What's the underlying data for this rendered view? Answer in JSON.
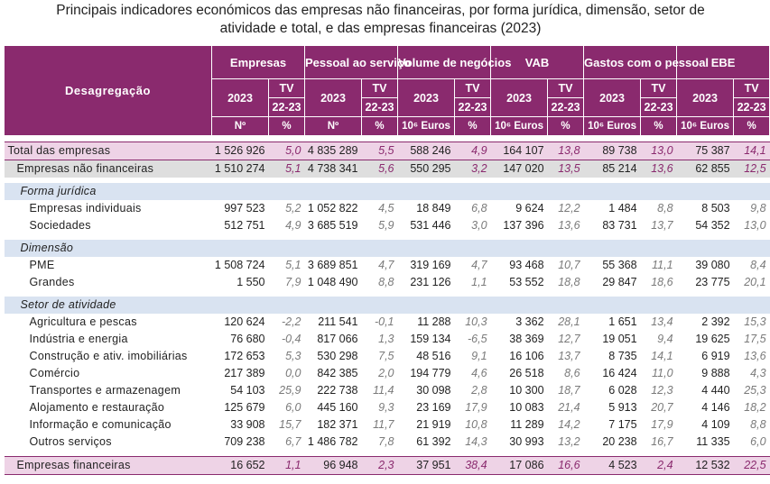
{
  "title_line1": "Principais indicadores económicos das empresas não financeiras, por forma jurídica, dimensão, setor de",
  "title_line2": "atividade e total, e das empresas financeiras (2023)",
  "header": {
    "corner": "Desagregação",
    "groups": [
      "Empresas",
      "Pessoal ao serviço",
      "Volume de negócios",
      "VAB",
      "Gastos com o pessoal",
      "EBE"
    ],
    "year": "2023",
    "tv": "TV",
    "period": "22-23",
    "units": [
      "Nº",
      "%",
      "Nº",
      "%",
      "10⁶ Euros",
      "%",
      "10⁶ Euros",
      "%",
      "10⁶ Euros",
      "%",
      "10⁶ Euros",
      "%"
    ]
  },
  "total": {
    "label": "Total das empresas",
    "values": [
      "1 526 926",
      "5,0",
      "4 835 289",
      "5,5",
      "588 246",
      "4,9",
      "164 107",
      "13,8",
      "89 738",
      "13,0",
      "75 387",
      "14,1"
    ]
  },
  "enf": {
    "label": "Empresas não financeiras",
    "values": [
      "1 510 274",
      "5,1",
      "4 738 341",
      "5,6",
      "550 295",
      "3,2",
      "147 020",
      "13,5",
      "85 214",
      "13,6",
      "62 855",
      "12,5"
    ]
  },
  "sections": {
    "forma": "Forma jurídica",
    "dimensao": "Dimensão",
    "setor": "Setor de atividade"
  },
  "forma_rows": [
    {
      "label": "Empresas individuais",
      "values": [
        "997 523",
        "5,2",
        "1 052 822",
        "4,5",
        "18 849",
        "6,8",
        "9 624",
        "12,2",
        "1 484",
        "8,8",
        "8 503",
        "9,8"
      ]
    },
    {
      "label": "Sociedades",
      "values": [
        "512 751",
        "4,9",
        "3 685 519",
        "5,9",
        "531 446",
        "3,0",
        "137 396",
        "13,6",
        "83 731",
        "13,7",
        "54 352",
        "13,0"
      ]
    }
  ],
  "dim_rows": [
    {
      "label": "PME",
      "values": [
        "1 508 724",
        "5,1",
        "3 689 851",
        "4,7",
        "319 169",
        "4,7",
        "93 468",
        "10,7",
        "55 368",
        "11,1",
        "39 080",
        "8,4"
      ]
    },
    {
      "label": "Grandes",
      "values": [
        "1 550",
        "7,9",
        "1 048 490",
        "8,8",
        "231 126",
        "1,1",
        "53 552",
        "18,8",
        "29 847",
        "18,6",
        "23 775",
        "20,1"
      ]
    }
  ],
  "setor_rows": [
    {
      "label": "Agricultura e pescas",
      "values": [
        "120 624",
        "-2,2",
        "211 541",
        "-0,1",
        "11 288",
        "10,3",
        "3 362",
        "28,1",
        "1 651",
        "13,4",
        "2 392",
        "15,3"
      ]
    },
    {
      "label": "Indústria e energia",
      "values": [
        "76 680",
        "-0,4",
        "817 066",
        "1,3",
        "159 134",
        "-6,5",
        "38 369",
        "12,7",
        "19 051",
        "9,4",
        "19 625",
        "17,5"
      ]
    },
    {
      "label": "Construção e ativ. imobiliárias",
      "values": [
        "172 653",
        "5,3",
        "530 298",
        "7,5",
        "48 516",
        "9,1",
        "16 106",
        "13,7",
        "8 735",
        "14,1",
        "6 919",
        "13,6"
      ]
    },
    {
      "label": "Comércio",
      "values": [
        "217 389",
        "0,0",
        "842 385",
        "2,0",
        "194 779",
        "4,6",
        "26 518",
        "8,6",
        "16 424",
        "11,0",
        "9 888",
        "4,3"
      ]
    },
    {
      "label": "Transportes e armazenagem",
      "values": [
        "54 103",
        "25,9",
        "222 738",
        "11,4",
        "30 098",
        "2,8",
        "10 300",
        "18,7",
        "6 028",
        "12,3",
        "4 440",
        "25,3"
      ]
    },
    {
      "label": "Alojamento e restauração",
      "values": [
        "125 679",
        "6,0",
        "445 160",
        "9,3",
        "23 169",
        "17,9",
        "10 083",
        "21,4",
        "5 913",
        "20,7",
        "4 146",
        "18,2"
      ]
    },
    {
      "label": "Informação e comunicação",
      "values": [
        "33 908",
        "15,7",
        "182 371",
        "11,7",
        "21 919",
        "10,8",
        "11 289",
        "14,2",
        "7 175",
        "17,9",
        "4 109",
        "8,8"
      ]
    },
    {
      "label": "Outros serviços",
      "values": [
        "709 238",
        "6,7",
        "1 486 782",
        "7,8",
        "61 392",
        "14,3",
        "30 993",
        "13,2",
        "20 238",
        "16,7",
        "11 335",
        "6,0"
      ]
    }
  ],
  "fin": {
    "label": "Empresas financeiras",
    "values": [
      "16 652",
      "1,1",
      "96 948",
      "2,3",
      "37 951",
      "38,4",
      "17 086",
      "16,6",
      "4 523",
      "2,4",
      "12 532",
      "22,5"
    ]
  }
}
